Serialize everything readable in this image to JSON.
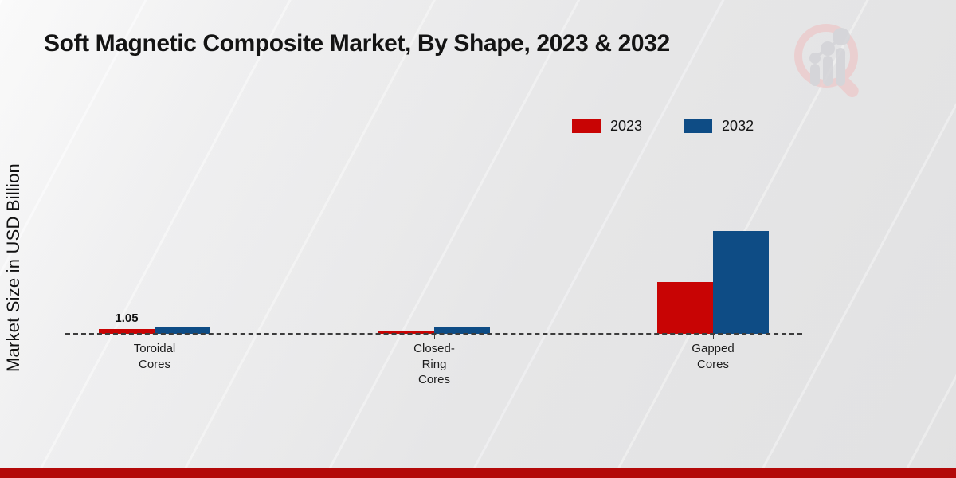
{
  "chart_data": {
    "type": "bar",
    "title": "Soft Magnetic Composite Market, By Shape, 2023 & 2032",
    "ylabel": "Market Size in USD Billion",
    "xlabel": "",
    "categories": [
      "Toroidal Cores",
      "Closed-Ring Cores",
      "Gapped Cores"
    ],
    "category_lines": [
      [
        "Toroidal",
        "Cores"
      ],
      [
        "Closed-Ring",
        "Cores"
      ],
      [
        "Gapped",
        "Cores"
      ]
    ],
    "series": [
      {
        "name": "2023",
        "color": "#c80404",
        "values": [
          1.05,
          0.65,
          10.5
        ],
        "value_labels": [
          "1.05",
          "",
          ""
        ]
      },
      {
        "name": "2032",
        "color": "#0e4c85",
        "values": [
          1.45,
          1.45,
          21.0
        ],
        "value_labels": [
          "",
          "",
          ""
        ]
      }
    ],
    "ylim": [
      0,
      22
    ],
    "grid": false,
    "legend_position": "top-right",
    "baseline_style": "dashed"
  },
  "watermark": {
    "icon": "magnifier-bar-chart-logo",
    "ring_color": "#eccccd",
    "bar_color": "#d3d3d7"
  },
  "footer": {
    "color": "#b30909"
  }
}
